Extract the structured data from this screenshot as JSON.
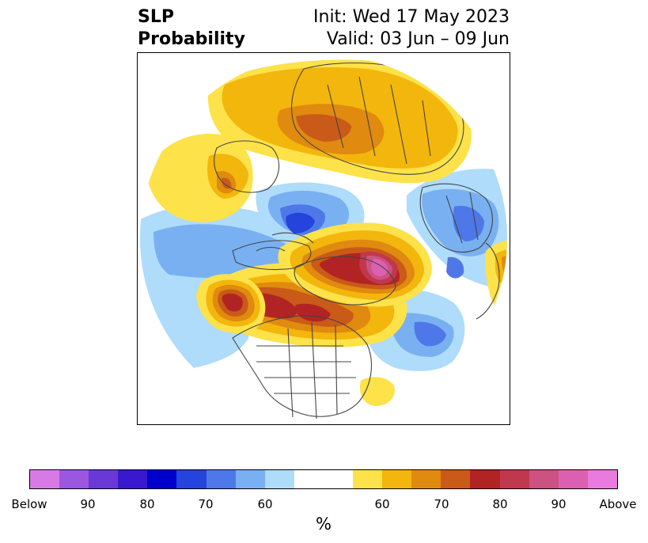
{
  "title": {
    "left_line1": "SLP",
    "left_line2": "Probability",
    "right_line1": "Init: Wed 17 May 2023",
    "right_line2": "Valid: 03 Jun – 09 Jun"
  },
  "colorbar": {
    "unit": "%",
    "segments": [
      {
        "color": "#d87ae6",
        "category": "below"
      },
      {
        "color": "#9c57e0",
        "category": "below"
      },
      {
        "color": "#6a38d6",
        "category": "below"
      },
      {
        "color": "#3a18cf",
        "category": "below"
      },
      {
        "color": "#0000cd",
        "category": "below"
      },
      {
        "color": "#2444dc",
        "category": "below"
      },
      {
        "color": "#4e78e8",
        "category": "below"
      },
      {
        "color": "#79b0f2",
        "category": "below"
      },
      {
        "color": "#aedcfa",
        "category": "below"
      },
      {
        "color": "#ffffff",
        "category": "neutral"
      },
      {
        "color": "#ffffff",
        "category": "neutral"
      },
      {
        "color": "#fde24a",
        "category": "above"
      },
      {
        "color": "#f3b60c",
        "category": "above"
      },
      {
        "color": "#e08a10",
        "category": "above"
      },
      {
        "color": "#c95a18",
        "category": "above"
      },
      {
        "color": "#b22424",
        "category": "above"
      },
      {
        "color": "#c0384e",
        "category": "above"
      },
      {
        "color": "#cc5282",
        "category": "above"
      },
      {
        "color": "#dc60b2",
        "category": "above"
      },
      {
        "color": "#e97ade",
        "category": "above"
      }
    ],
    "tick_labels": [
      "Below",
      "90",
      "80",
      "70",
      "60",
      "60",
      "70",
      "80",
      "90",
      "Above"
    ]
  },
  "map": {
    "projection": "north-polar-stereographic",
    "features": [
      {
        "name": "alaska-gulf-low",
        "category": "below",
        "level": 85
      },
      {
        "name": "pacific-below-band",
        "category": "below",
        "level": 60
      },
      {
        "name": "north-atlantic-below",
        "category": "below",
        "level": 70
      },
      {
        "name": "europe-below",
        "category": "below",
        "level": 65
      },
      {
        "name": "greenland-high",
        "category": "above",
        "level": 95
      },
      {
        "name": "canada-high",
        "category": "above",
        "level": 80
      },
      {
        "name": "north-pacific-high",
        "category": "above",
        "level": 80
      },
      {
        "name": "siberia-high",
        "category": "above",
        "level": 70
      },
      {
        "name": "east-asia-above",
        "category": "above",
        "level": 75
      },
      {
        "name": "mid-atlantic-above",
        "category": "above",
        "level": 60
      }
    ]
  }
}
